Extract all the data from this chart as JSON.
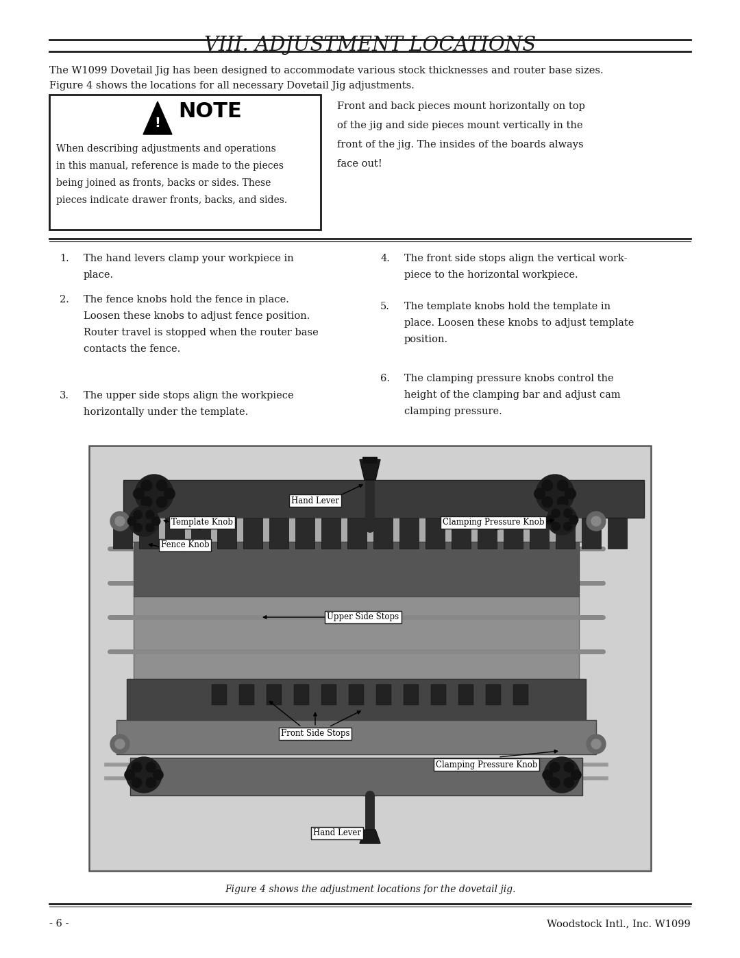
{
  "title": "VIII. ADJUSTMENT LOCATIONS",
  "bg_color": "#ffffff",
  "text_color": "#1a1a1a",
  "page_number": "- 6 -",
  "company": "Woodstock Intl., Inc. W1099",
  "intro_line1": "The W1099 Dovetail Jig has been designed to accommodate various stock thicknesses and router base sizes.",
  "intro_line2": "Figure 4 shows the locations for all necessary Dovetail Jig adjustments.",
  "note_text_line1": "When describing adjustments and operations",
  "note_text_line2": "in this manual, reference is made to the pieces",
  "note_text_line3": "being joined as fronts, backs or sides. These",
  "note_text_line4": "pieces indicate drawer fronts, backs, and sides.",
  "note_side_line1": "Front and back pieces mount horizontally on top",
  "note_side_line2": "of the jig and side pieces mount vertically in the",
  "note_side_line3": "front of the jig. The insides of the boards always",
  "note_side_line4": "face out!",
  "list1_num": "1.",
  "list1_text": "The hand levers clamp your workpiece in\nplace.",
  "list2_num": "2.",
  "list2_text": "The fence knobs hold the fence in place.\nLoosen these knobs to adjust fence position.\nRouter travel is stopped when the router base\ncontacts the fence.",
  "list3_num": "3.",
  "list3_text": "The upper side stops align the workpiece\nhorizontally under the template.",
  "list4_num": "4.",
  "list4_text": "The front side stops align the vertical work-\npiece to the horizontal workpiece.",
  "list5_num": "5.",
  "list5_text": "The template knobs hold the template in\nplace. Loosen these knobs to adjust template\nposition.",
  "list6_num": "6.",
  "list6_text": "The clamping pressure knobs control the\nheight of the clamping bar and adjust cam\nclamping pressure.",
  "figure_caption": "Figure 4 shows the adjustment locations for the dovetail jig.",
  "label_hand_lever_top": "Hand Lever",
  "label_template_knob": "Template Knob",
  "label_clamping_top": "Clamping Pressure Knob",
  "label_fence_knob": "Fence Knob",
  "label_upper_side": "Upper Side Stops",
  "label_front_side": "Front Side Stops",
  "label_clamping_bot": "Clamping Pressure Knob",
  "label_hand_lever_bot": "Hand Lever"
}
